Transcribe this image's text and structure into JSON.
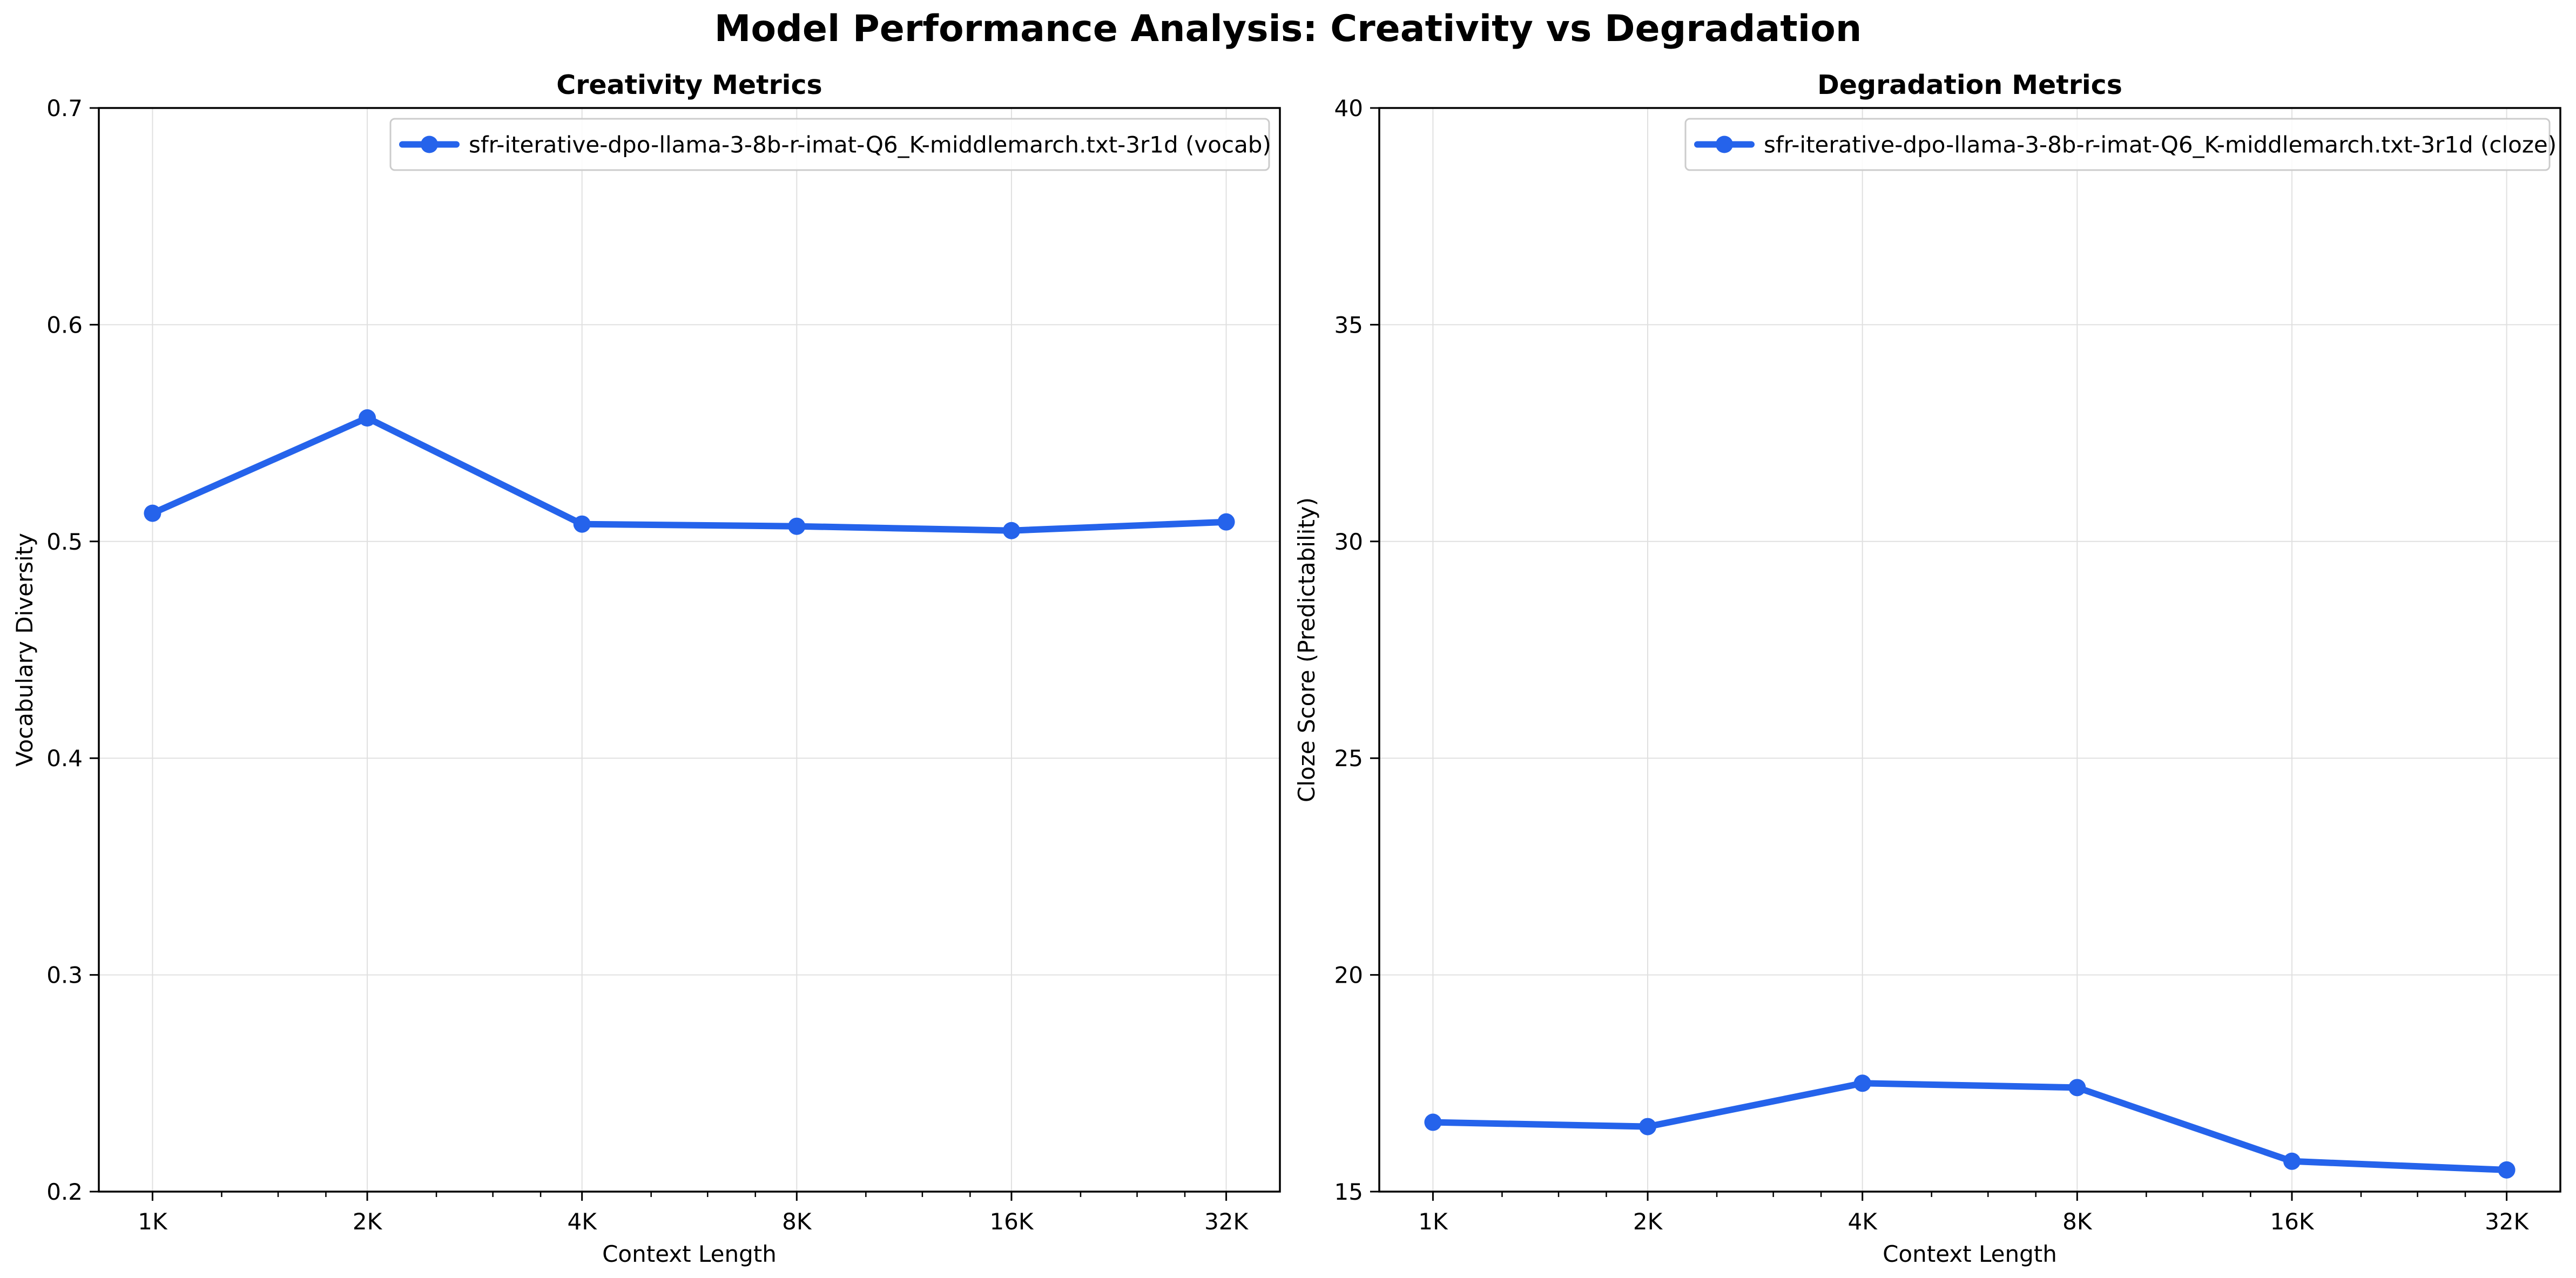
{
  "figure": {
    "title": "Model Performance Analysis: Creativity vs Degradation"
  },
  "colors": {
    "series": "#2563eb",
    "grid": "#e0e0e0",
    "axis": "#000000"
  },
  "chart_data": [
    {
      "type": "line",
      "title": "Creativity Metrics",
      "xlabel": "Context Length",
      "ylabel": "Vocabulary Diversity",
      "x_scale": "log2",
      "categories": [
        "1K",
        "2K",
        "4K",
        "8K",
        "16K",
        "32K"
      ],
      "x": [
        1024,
        2048,
        4096,
        8192,
        16384,
        32768
      ],
      "ylim": [
        0.2,
        0.7
      ],
      "yticks": [
        "0.2",
        "0.3",
        "0.4",
        "0.5",
        "0.6",
        "0.7"
      ],
      "grid": true,
      "legend_position": "top-right",
      "series": [
        {
          "name": "sfr-iterative-dpo-llama-3-8b-r-imat-Q6_K-middlemarch.txt-3r1d (vocab)",
          "values": [
            0.513,
            0.557,
            0.508,
            0.507,
            0.505,
            0.509
          ]
        }
      ]
    },
    {
      "type": "line",
      "title": "Degradation Metrics",
      "xlabel": "Context Length",
      "ylabel": "Cloze Score (Predictability)",
      "x_scale": "log2",
      "categories": [
        "1K",
        "2K",
        "4K",
        "8K",
        "16K",
        "32K"
      ],
      "x": [
        1024,
        2048,
        4096,
        8192,
        16384,
        32768
      ],
      "ylim": [
        15,
        40
      ],
      "yticks": [
        "15",
        "20",
        "25",
        "30",
        "35",
        "40"
      ],
      "grid": true,
      "legend_position": "top-right",
      "series": [
        {
          "name": "sfr-iterative-dpo-llama-3-8b-r-imat-Q6_K-middlemarch.txt-3r1d (cloze)",
          "values": [
            16.6,
            16.5,
            17.5,
            17.4,
            15.7,
            15.5
          ]
        }
      ]
    }
  ]
}
